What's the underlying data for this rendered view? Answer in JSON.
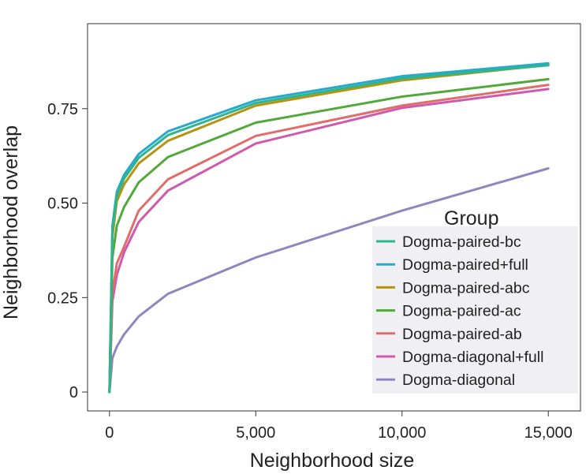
{
  "chart_data": {
    "type": "line",
    "title": "",
    "xlabel": "Neighborhood size",
    "ylabel": "Neighborhood overlap",
    "xlim": [
      -750,
      16100
    ],
    "ylim": [
      -0.05,
      0.975
    ],
    "xticks": [
      {
        "value": 0,
        "label": "0"
      },
      {
        "value": 5000,
        "label": "5,000"
      },
      {
        "value": 10000,
        "label": "10,000"
      },
      {
        "value": 15000,
        "label": "15,000"
      }
    ],
    "yticks": [
      {
        "value": 0,
        "label": "0"
      },
      {
        "value": 0.25,
        "label": "0.25"
      },
      {
        "value": 0.5,
        "label": "0.50"
      },
      {
        "value": 0.75,
        "label": "0.75"
      }
    ],
    "grid": false,
    "legend": {
      "title": "Group",
      "position": "bottom-right"
    },
    "x": [
      0,
      100,
      250,
      500,
      1000,
      2000,
      5000,
      10000,
      15000
    ],
    "series": [
      {
        "name": "Dogma-paired-bc",
        "color": "#2fb58c",
        "values": [
          0.0,
          0.425,
          0.52,
          0.565,
          0.62,
          0.68,
          0.765,
          0.83,
          0.865
        ]
      },
      {
        "name": "Dogma-paired+full",
        "color": "#26a9cc",
        "values": [
          0.0,
          0.44,
          0.53,
          0.575,
          0.63,
          0.69,
          0.772,
          0.836,
          0.87
        ]
      },
      {
        "name": "Dogma-paired-abc",
        "color": "#b5930c",
        "values": [
          0.0,
          0.41,
          0.505,
          0.55,
          0.605,
          0.665,
          0.758,
          0.825,
          0.866
        ]
      },
      {
        "name": "Dogma-paired-ac",
        "color": "#52a83a",
        "values": [
          0.0,
          0.355,
          0.44,
          0.49,
          0.555,
          0.622,
          0.713,
          0.782,
          0.828
        ]
      },
      {
        "name": "Dogma-paired-ab",
        "color": "#e06d6a",
        "values": [
          0.0,
          0.26,
          0.34,
          0.385,
          0.48,
          0.563,
          0.678,
          0.758,
          0.813
        ]
      },
      {
        "name": "Dogma-diagonal+full",
        "color": "#cf5aad",
        "values": [
          0.0,
          0.24,
          0.31,
          0.37,
          0.45,
          0.533,
          0.658,
          0.752,
          0.802
        ]
      },
      {
        "name": "Dogma-diagonal",
        "color": "#8f86c0",
        "values": [
          0.0,
          0.09,
          0.12,
          0.153,
          0.2,
          0.26,
          0.356,
          0.48,
          0.592
        ]
      }
    ]
  }
}
